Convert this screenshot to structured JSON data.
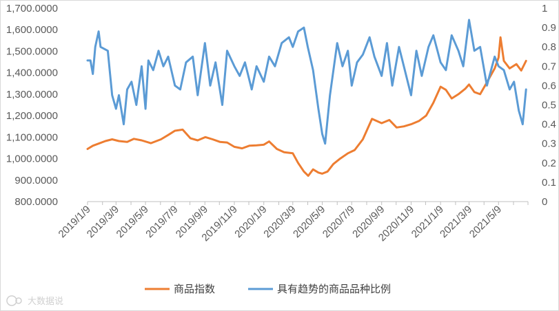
{
  "chart_data": {
    "type": "line",
    "title": "",
    "left_axis": {
      "ylim": [
        800,
        1700
      ],
      "ticks": [
        800,
        900,
        1000,
        1100,
        1200,
        1300,
        1400,
        1500,
        1600,
        1700
      ],
      "tick_labels": [
        "800.0000",
        "900.0000",
        "1,000.0000",
        "1,100.0000",
        "1,200.0000",
        "1,300.0000",
        "1,400.0000",
        "1,500.0000",
        "1,600.0000",
        "1,700.0000"
      ]
    },
    "right_axis": {
      "ylim": [
        0,
        1
      ],
      "ticks": [
        0,
        0.1,
        0.2,
        0.3,
        0.4,
        0.5,
        0.6,
        0.7,
        0.8,
        0.9,
        1
      ],
      "tick_labels": [
        "0",
        "0.1",
        "0.2",
        "0.3",
        "0.4",
        "0.5",
        "0.6",
        "0.7",
        "0.8",
        "0.9",
        "1"
      ]
    },
    "x_axis": {
      "range": [
        "2019-01-09",
        "2021-07-09"
      ],
      "tick_labels": [
        "2019/1/9",
        "2019/3/9",
        "2019/5/9",
        "2019/7/9",
        "2019/9/9",
        "2019/11/9",
        "2020/1/9",
        "2020/3/9",
        "2020/5/9",
        "2020/7/9",
        "2020/9/9",
        "2020/11/9",
        "2021/1/9",
        "2021/3/9",
        "2021/5/9"
      ],
      "grid": false
    },
    "legend_position": "bottom",
    "series": [
      {
        "name": "商品指数",
        "axis": "left",
        "color": "#ED7D31",
        "points": [
          [
            "2019-01-09",
            1045
          ],
          [
            "2019-01-20",
            1060
          ],
          [
            "2019-02-01",
            1070
          ],
          [
            "2019-02-15",
            1082
          ],
          [
            "2019-03-01",
            1090
          ],
          [
            "2019-03-15",
            1082
          ],
          [
            "2019-04-01",
            1078
          ],
          [
            "2019-04-15",
            1092
          ],
          [
            "2019-05-01",
            1085
          ],
          [
            "2019-05-20",
            1072
          ],
          [
            "2019-06-10",
            1090
          ],
          [
            "2019-06-25",
            1110
          ],
          [
            "2019-07-09",
            1130
          ],
          [
            "2019-07-25",
            1135
          ],
          [
            "2019-08-10",
            1095
          ],
          [
            "2019-08-25",
            1085
          ],
          [
            "2019-09-10",
            1100
          ],
          [
            "2019-09-25",
            1090
          ],
          [
            "2019-10-10",
            1078
          ],
          [
            "2019-10-25",
            1075
          ],
          [
            "2019-11-09",
            1055
          ],
          [
            "2019-11-25",
            1048
          ],
          [
            "2019-12-10",
            1060
          ],
          [
            "2019-12-25",
            1062
          ],
          [
            "2020-01-09",
            1065
          ],
          [
            "2020-01-20",
            1080
          ],
          [
            "2020-02-05",
            1045
          ],
          [
            "2020-02-20",
            1030
          ],
          [
            "2020-03-09",
            1025
          ],
          [
            "2020-03-20",
            980
          ],
          [
            "2020-04-01",
            940
          ],
          [
            "2020-04-10",
            920
          ],
          [
            "2020-04-20",
            950
          ],
          [
            "2020-05-01",
            935
          ],
          [
            "2020-05-09",
            930
          ],
          [
            "2020-05-20",
            940
          ],
          [
            "2020-06-01",
            975
          ],
          [
            "2020-06-15",
            1000
          ],
          [
            "2020-07-01",
            1025
          ],
          [
            "2020-07-15",
            1040
          ],
          [
            "2020-08-01",
            1090
          ],
          [
            "2020-08-20",
            1185
          ],
          [
            "2020-09-09",
            1165
          ],
          [
            "2020-09-25",
            1180
          ],
          [
            "2020-10-10",
            1145
          ],
          [
            "2020-10-25",
            1150
          ],
          [
            "2020-11-09",
            1160
          ],
          [
            "2020-11-25",
            1175
          ],
          [
            "2020-12-10",
            1200
          ],
          [
            "2020-12-25",
            1260
          ],
          [
            "2021-01-09",
            1335
          ],
          [
            "2021-01-20",
            1320
          ],
          [
            "2021-02-01",
            1280
          ],
          [
            "2021-02-15",
            1300
          ],
          [
            "2021-03-01",
            1325
          ],
          [
            "2021-03-09",
            1345
          ],
          [
            "2021-03-20",
            1310
          ],
          [
            "2021-04-01",
            1300
          ],
          [
            "2021-04-15",
            1355
          ],
          [
            "2021-05-01",
            1420
          ],
          [
            "2021-05-09",
            1470
          ],
          [
            "2021-05-13",
            1565
          ],
          [
            "2021-05-20",
            1455
          ],
          [
            "2021-06-01",
            1420
          ],
          [
            "2021-06-15",
            1440
          ],
          [
            "2021-06-25",
            1410
          ],
          [
            "2021-07-05",
            1455
          ]
        ]
      },
      {
        "name": "具有趋势的商品品种比例",
        "axis": "right",
        "color": "#5B9BD5",
        "points": [
          [
            "2019-01-09",
            0.73
          ],
          [
            "2019-01-15",
            0.73
          ],
          [
            "2019-01-20",
            0.66
          ],
          [
            "2019-01-25",
            0.8
          ],
          [
            "2019-02-01",
            0.88
          ],
          [
            "2019-02-05",
            0.8
          ],
          [
            "2019-02-20",
            0.78
          ],
          [
            "2019-03-01",
            0.55
          ],
          [
            "2019-03-09",
            0.48
          ],
          [
            "2019-03-15",
            0.55
          ],
          [
            "2019-03-25",
            0.4
          ],
          [
            "2019-04-01",
            0.58
          ],
          [
            "2019-04-10",
            0.62
          ],
          [
            "2019-04-20",
            0.5
          ],
          [
            "2019-05-01",
            0.7
          ],
          [
            "2019-05-09",
            0.48
          ],
          [
            "2019-05-15",
            0.73
          ],
          [
            "2019-05-25",
            0.68
          ],
          [
            "2019-06-05",
            0.78
          ],
          [
            "2019-06-15",
            0.7
          ],
          [
            "2019-06-25",
            0.75
          ],
          [
            "2019-07-09",
            0.6
          ],
          [
            "2019-07-20",
            0.58
          ],
          [
            "2019-08-01",
            0.72
          ],
          [
            "2019-08-15",
            0.75
          ],
          [
            "2019-08-25",
            0.55
          ],
          [
            "2019-09-09",
            0.82
          ],
          [
            "2019-09-20",
            0.6
          ],
          [
            "2019-10-01",
            0.72
          ],
          [
            "2019-10-15",
            0.5
          ],
          [
            "2019-10-25",
            0.78
          ],
          [
            "2019-11-09",
            0.7
          ],
          [
            "2019-11-20",
            0.65
          ],
          [
            "2019-12-01",
            0.72
          ],
          [
            "2019-12-15",
            0.58
          ],
          [
            "2019-12-25",
            0.7
          ],
          [
            "2020-01-09",
            0.62
          ],
          [
            "2020-01-20",
            0.75
          ],
          [
            "2020-02-01",
            0.7
          ],
          [
            "2020-02-15",
            0.82
          ],
          [
            "2020-03-01",
            0.85
          ],
          [
            "2020-03-09",
            0.8
          ],
          [
            "2020-03-20",
            0.88
          ],
          [
            "2020-04-01",
            0.9
          ],
          [
            "2020-04-09",
            0.8
          ],
          [
            "2020-04-20",
            0.68
          ],
          [
            "2020-05-01",
            0.48
          ],
          [
            "2020-05-09",
            0.35
          ],
          [
            "2020-05-15",
            0.3
          ],
          [
            "2020-05-25",
            0.55
          ],
          [
            "2020-06-09",
            0.82
          ],
          [
            "2020-06-20",
            0.7
          ],
          [
            "2020-07-01",
            0.78
          ],
          [
            "2020-07-09",
            0.6
          ],
          [
            "2020-07-20",
            0.72
          ],
          [
            "2020-08-01",
            0.76
          ],
          [
            "2020-08-15",
            0.85
          ],
          [
            "2020-08-25",
            0.75
          ],
          [
            "2020-09-09",
            0.65
          ],
          [
            "2020-09-20",
            0.82
          ],
          [
            "2020-10-01",
            0.6
          ],
          [
            "2020-10-15",
            0.8
          ],
          [
            "2020-10-25",
            0.7
          ],
          [
            "2020-11-09",
            0.55
          ],
          [
            "2020-11-20",
            0.78
          ],
          [
            "2020-12-01",
            0.65
          ],
          [
            "2020-12-15",
            0.8
          ],
          [
            "2020-12-25",
            0.86
          ],
          [
            "2021-01-09",
            0.72
          ],
          [
            "2021-01-20",
            0.68
          ],
          [
            "2021-02-01",
            0.86
          ],
          [
            "2021-02-15",
            0.78
          ],
          [
            "2021-02-25",
            0.7
          ],
          [
            "2021-03-09",
            0.94
          ],
          [
            "2021-03-20",
            0.78
          ],
          [
            "2021-04-01",
            0.8
          ],
          [
            "2021-04-15",
            0.6
          ],
          [
            "2021-05-01",
            0.75
          ],
          [
            "2021-05-09",
            0.7
          ],
          [
            "2021-05-20",
            0.68
          ],
          [
            "2021-06-01",
            0.58
          ],
          [
            "2021-06-10",
            0.62
          ],
          [
            "2021-06-20",
            0.47
          ],
          [
            "2021-06-28",
            0.4
          ],
          [
            "2021-07-05",
            0.58
          ]
        ]
      }
    ]
  },
  "watermark": {
    "icon": "tag-icon",
    "text": "大数据说"
  }
}
